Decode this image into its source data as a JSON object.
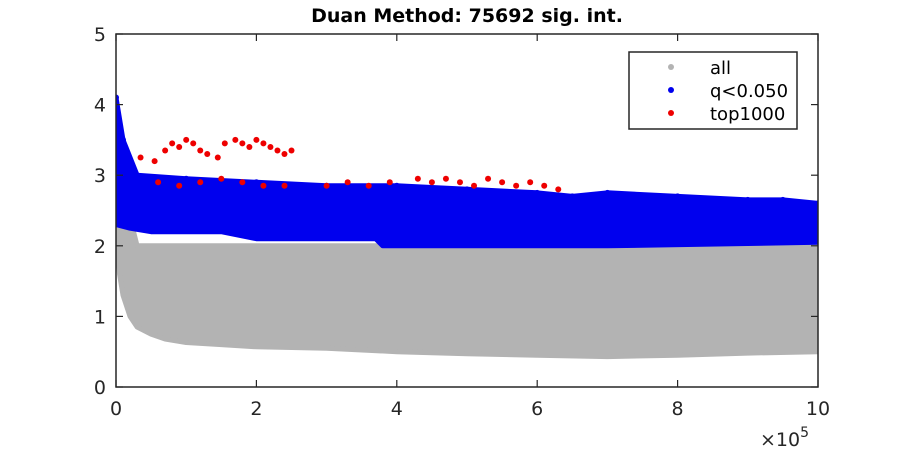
{
  "chart_data": {
    "type": "scatter",
    "title": "Duan Method: 75692 sig. int.",
    "xlabel": "",
    "ylabel": "",
    "x_multiplier_label": "×10",
    "x_multiplier_exponent": "5",
    "xlim": [
      0,
      10
    ],
    "ylim": [
      0,
      5
    ],
    "x_ticks": [
      0,
      2,
      4,
      6,
      8,
      10
    ],
    "x_tick_labels": [
      "0",
      "2",
      "4",
      "6",
      "8",
      "10"
    ],
    "y_ticks": [
      0,
      1,
      2,
      3,
      4,
      5
    ],
    "y_tick_labels": [
      "0",
      "1",
      "2",
      "3",
      "4",
      "5"
    ],
    "grid": false,
    "legend_position": "top-right",
    "series": [
      {
        "name": "all",
        "color": "#b3b3b3",
        "description": "dense gray band: upper envelope drops from ~4.0 at x=0 to ~2.0 by x≈0.3; lower envelope drops from ~2.3 to ~0.65 by x≈0.6 and slowly to ~0.5 at x=10",
        "x_lower_envelope": [
          0.0,
          0.05,
          0.1,
          0.2,
          0.3,
          0.5,
          0.7,
          1.0,
          1.5,
          2.0,
          3.0,
          4.0,
          5.0,
          6.0,
          7.0,
          8.0,
          9.0,
          10.0
        ],
        "y_lower_envelope": [
          2.3,
          1.6,
          1.3,
          1.0,
          0.85,
          0.75,
          0.68,
          0.63,
          0.6,
          0.57,
          0.55,
          0.5,
          0.47,
          0.45,
          0.43,
          0.45,
          0.48,
          0.5
        ],
        "x_upper_envelope": [
          0.0,
          0.1,
          0.2,
          0.3,
          10.0
        ],
        "y_upper_envelope": [
          4.0,
          3.0,
          2.4,
          2.0,
          2.0
        ]
      },
      {
        "name": "q<0.050",
        "color": "#0000ee",
        "description": "blue band between ~2.0 and ~2.7 spanning x 0–10, with a spike to ~4.1 near x=0",
        "x_lower_envelope": [
          0.0,
          0.2,
          0.5,
          1.0,
          1.5,
          2.0,
          3.0,
          3.7,
          3.8,
          5.0,
          7.0,
          10.0
        ],
        "y_lower_envelope": [
          2.3,
          2.25,
          2.2,
          2.2,
          2.2,
          2.1,
          2.1,
          2.1,
          2.0,
          2.0,
          2.0,
          2.05
        ],
        "x_upper_envelope": [
          0.0,
          0.1,
          0.3,
          1.0,
          2.0,
          3.0,
          4.0,
          5.0,
          6.0,
          6.5,
          7.0,
          8.0,
          9.0,
          9.5,
          10.0
        ],
        "y_upper_envelope": [
          4.1,
          3.5,
          3.0,
          2.95,
          2.9,
          2.85,
          2.85,
          2.8,
          2.75,
          2.7,
          2.75,
          2.7,
          2.65,
          2.65,
          2.6
        ]
      },
      {
        "name": "top1000",
        "color": "#ee0000",
        "description": "red points in clusters around y 2.7–3.5 for x 0.3–2.6 and y 2.75–2.95 for x 3.0–6.4",
        "x": [
          0.35,
          0.55,
          0.7,
          0.8,
          0.9,
          1.0,
          1.1,
          1.2,
          1.3,
          1.45,
          1.55,
          1.7,
          1.8,
          1.9,
          2.0,
          2.1,
          2.2,
          2.3,
          2.4,
          2.5,
          0.6,
          0.9,
          1.2,
          1.5,
          1.8,
          2.1,
          2.4,
          3.0,
          3.3,
          3.6,
          3.9,
          4.3,
          4.5,
          4.7,
          4.9,
          5.1,
          5.3,
          5.5,
          5.7,
          5.9,
          6.1,
          6.3
        ],
        "y": [
          3.25,
          3.2,
          3.35,
          3.45,
          3.4,
          3.5,
          3.45,
          3.35,
          3.3,
          3.25,
          3.45,
          3.5,
          3.45,
          3.4,
          3.5,
          3.45,
          3.4,
          3.35,
          3.3,
          3.35,
          2.9,
          2.85,
          2.9,
          2.95,
          2.9,
          2.85,
          2.85,
          2.85,
          2.9,
          2.85,
          2.9,
          2.95,
          2.9,
          2.95,
          2.9,
          2.85,
          2.95,
          2.9,
          2.85,
          2.9,
          2.85,
          2.8
        ]
      }
    ]
  }
}
